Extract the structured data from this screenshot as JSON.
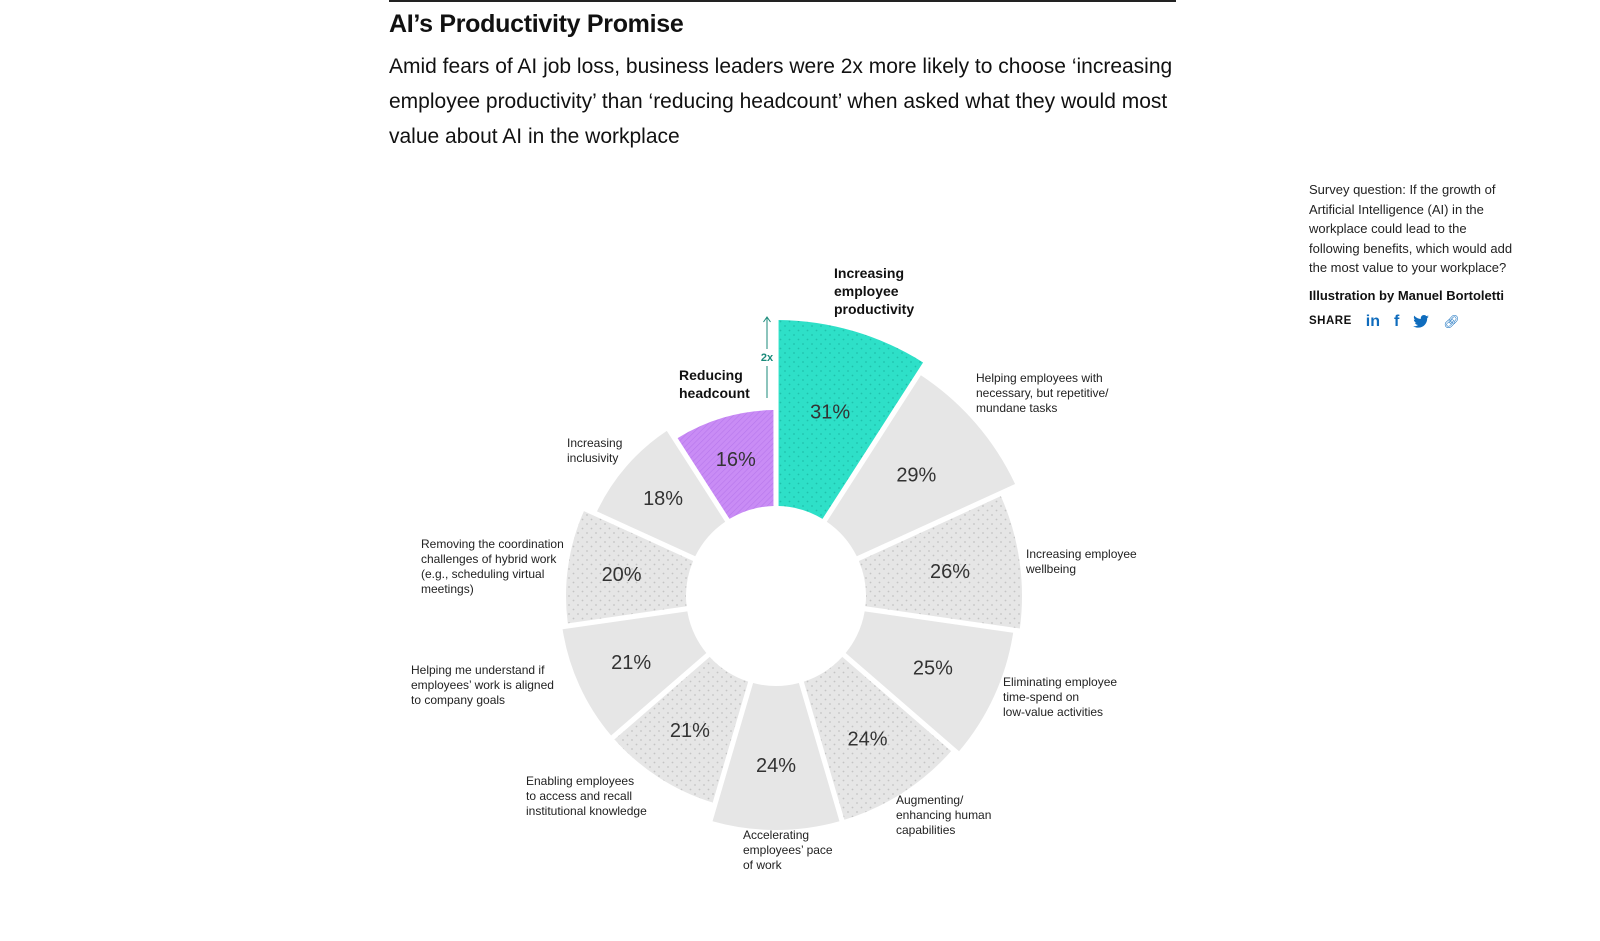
{
  "header": {
    "title": "AI’s Productivity Promise",
    "subtitle": "Amid fears of AI job loss, business leaders were 2x more likely to choose ‘increasing employee productivity’ than ‘reducing headcount’ when asked what they would most value about AI in the workplace"
  },
  "sidebar": {
    "survey_question": "Survey question: If the growth of Artificial Intelligence (AI) in the workplace could lead to the following benefits, which would add the most value to your workplace?",
    "credit": "Illustration by Manuel Bortoletti",
    "share_label": "SHARE",
    "share_icons": [
      "linkedin-icon",
      "facebook-icon",
      "twitter-icon",
      "link-icon"
    ]
  },
  "colors": {
    "highlight_productivity": "#2ee0c8",
    "highlight_headcount": "#c98cf5",
    "neutral": "#e6e6e6",
    "annotation": "#1a8a7a",
    "share_icon": "#0f6cbd"
  },
  "chart_data": {
    "type": "radial-bar",
    "title": "AI’s Productivity Promise",
    "annotation": "2x",
    "categories": [
      "Increasing employee productivity",
      "Helping employees with necessary, but repetitive/ mundane tasks",
      "Increasing employee wellbeing",
      "Eliminating employee time-spend on low-value activities",
      "Augmenting/ enhancing human capabilities",
      "Accelerating employees’ pace of work",
      "Enabling employees to access and recall institutional knowledge",
      "Helping me understand if employees’ work is aligned to company goals",
      "Removing the coordination challenges of hybrid work (e.g., scheduling virtual meetings)",
      "Increasing inclusivity",
      "Reducing headcount"
    ],
    "values": [
      31,
      29,
      26,
      25,
      24,
      24,
      21,
      21,
      20,
      18,
      16
    ],
    "unit": "%",
    "highlighted": [
      "Increasing employee productivity",
      "Reducing headcount"
    ],
    "segments": [
      {
        "value": 31,
        "pct": "31%",
        "label_lines": [
          "Increasing",
          "employee",
          "productivity"
        ],
        "bold": true,
        "pattern": "dots",
        "color": "#2ee0c8"
      },
      {
        "value": 29,
        "pct": "29%",
        "label_lines": [
          "Helping employees with",
          "necessary, but repetitive/",
          "mundane tasks"
        ],
        "bold": false,
        "pattern": "none",
        "color": "#e6e6e6"
      },
      {
        "value": 26,
        "pct": "26%",
        "label_lines": [
          "Increasing employee",
          "wellbeing"
        ],
        "bold": false,
        "pattern": "dots",
        "color": "#e6e6e6"
      },
      {
        "value": 25,
        "pct": "25%",
        "label_lines": [
          "Eliminating employee",
          "time-spend on",
          "low-value activities"
        ],
        "bold": false,
        "pattern": "none",
        "color": "#e6e6e6"
      },
      {
        "value": 24,
        "pct": "24%",
        "label_lines": [
          "Augmenting/",
          "enhancing human",
          "capabilities"
        ],
        "bold": false,
        "pattern": "dots",
        "color": "#e6e6e6"
      },
      {
        "value": 24,
        "pct": "24%",
        "label_lines": [
          "Accelerating",
          "employees’ pace",
          "of work"
        ],
        "bold": false,
        "pattern": "none",
        "color": "#e6e6e6"
      },
      {
        "value": 21,
        "pct": "21%",
        "label_lines": [
          "Enabling employees",
          "to access and recall",
          "institutional knowledge"
        ],
        "bold": false,
        "pattern": "dots",
        "color": "#e6e6e6"
      },
      {
        "value": 21,
        "pct": "21%",
        "label_lines": [
          "Helping me understand if",
          "employees’ work is aligned",
          "to company goals"
        ],
        "bold": false,
        "pattern": "none",
        "color": "#e6e6e6"
      },
      {
        "value": 20,
        "pct": "20%",
        "label_lines": [
          "Removing the coordination",
          "challenges of hybrid work",
          "(e.g., scheduling virtual",
          "meetings)"
        ],
        "bold": false,
        "pattern": "dots",
        "color": "#e6e6e6"
      },
      {
        "value": 18,
        "pct": "18%",
        "label_lines": [
          "Increasing",
          "inclusivity"
        ],
        "bold": false,
        "pattern": "none",
        "color": "#e6e6e6"
      },
      {
        "value": 16,
        "pct": "16%",
        "label_lines": [
          "Reducing",
          "headcount"
        ],
        "bold": true,
        "pattern": "hatch",
        "color": "#c98cf5"
      }
    ]
  }
}
